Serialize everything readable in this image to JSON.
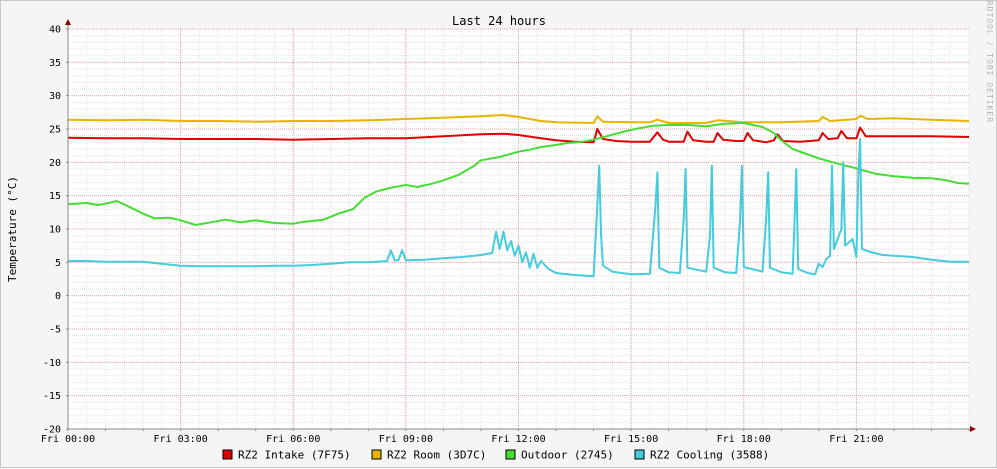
{
  "chart_data": {
    "type": "line",
    "title": "Last 24 hours",
    "ylabel": "Temperature (°C)",
    "watermark": "RRDTOOL / TOBI OETIKER",
    "ylim": [
      -20,
      40
    ],
    "y_ticks": [
      40,
      35,
      30,
      25,
      20,
      15,
      10,
      5,
      0,
      -5,
      -10,
      -15,
      -20
    ],
    "x_range": [
      0,
      24
    ],
    "x_ticks": [
      {
        "hour": 0,
        "label": "Fri 00:00"
      },
      {
        "hour": 3,
        "label": "Fri 03:00"
      },
      {
        "hour": 6,
        "label": "Fri 06:00"
      },
      {
        "hour": 9,
        "label": "Fri 09:00"
      },
      {
        "hour": 12,
        "label": "Fri 12:00"
      },
      {
        "hour": 15,
        "label": "Fri 15:00"
      },
      {
        "hour": 18,
        "label": "Fri 18:00"
      },
      {
        "hour": 21,
        "label": "Fri 21:00"
      }
    ],
    "grid": true,
    "legend_position": "bottom",
    "series": [
      {
        "name": "RZ2 Intake (7F75)",
        "color": "#e00000",
        "points": [
          [
            0,
            23.7
          ],
          [
            1,
            23.6
          ],
          [
            2,
            23.6
          ],
          [
            3,
            23.5
          ],
          [
            4,
            23.5
          ],
          [
            5,
            23.5
          ],
          [
            6,
            23.4
          ],
          [
            7,
            23.5
          ],
          [
            8,
            23.6
          ],
          [
            9,
            23.6
          ],
          [
            10,
            23.9
          ],
          [
            11,
            24.2
          ],
          [
            11.6,
            24.3
          ],
          [
            12,
            24.1
          ],
          [
            12.6,
            23.6
          ],
          [
            13,
            23.3
          ],
          [
            13.5,
            23.1
          ],
          [
            14,
            23.0
          ],
          [
            14.1,
            25.0
          ],
          [
            14.25,
            23.5
          ],
          [
            14.6,
            23.2
          ],
          [
            15,
            23.1
          ],
          [
            15.5,
            23.1
          ],
          [
            15.7,
            24.5
          ],
          [
            15.85,
            23.4
          ],
          [
            16,
            23.1
          ],
          [
            16.4,
            23.1
          ],
          [
            16.5,
            24.6
          ],
          [
            16.65,
            23.3
          ],
          [
            17,
            23.1
          ],
          [
            17.2,
            23.1
          ],
          [
            17.3,
            24.4
          ],
          [
            17.45,
            23.4
          ],
          [
            17.8,
            23.2
          ],
          [
            18,
            23.2
          ],
          [
            18.1,
            24.4
          ],
          [
            18.25,
            23.3
          ],
          [
            18.6,
            23.0
          ],
          [
            18.8,
            23.3
          ],
          [
            18.9,
            24.2
          ],
          [
            19.05,
            23.2
          ],
          [
            19.5,
            23.1
          ],
          [
            20,
            23.3
          ],
          [
            20.1,
            24.4
          ],
          [
            20.25,
            23.5
          ],
          [
            20.5,
            23.6
          ],
          [
            20.6,
            24.7
          ],
          [
            20.75,
            23.6
          ],
          [
            21,
            23.6
          ],
          [
            21.1,
            25.2
          ],
          [
            21.25,
            23.9
          ],
          [
            22,
            23.9
          ],
          [
            23,
            23.9
          ],
          [
            24,
            23.8
          ]
        ]
      },
      {
        "name": "RZ2 Room (3D7C)",
        "color": "#e8b400",
        "points": [
          [
            0,
            26.4
          ],
          [
            1,
            26.3
          ],
          [
            2,
            26.4
          ],
          [
            3,
            26.2
          ],
          [
            4,
            26.2
          ],
          [
            5,
            26.1
          ],
          [
            6,
            26.2
          ],
          [
            7,
            26.2
          ],
          [
            8,
            26.3
          ],
          [
            9,
            26.5
          ],
          [
            10,
            26.7
          ],
          [
            11,
            26.9
          ],
          [
            11.6,
            27.1
          ],
          [
            12,
            26.8
          ],
          [
            12.6,
            26.2
          ],
          [
            13,
            26.0
          ],
          [
            14,
            25.9
          ],
          [
            14.1,
            26.9
          ],
          [
            14.25,
            26.1
          ],
          [
            15,
            26.0
          ],
          [
            15.5,
            26.0
          ],
          [
            15.7,
            26.4
          ],
          [
            16,
            25.9
          ],
          [
            17,
            25.9
          ],
          [
            17.3,
            26.3
          ],
          [
            18,
            26.0
          ],
          [
            19,
            26.0
          ],
          [
            20,
            26.2
          ],
          [
            20.1,
            26.8
          ],
          [
            20.3,
            26.2
          ],
          [
            21,
            26.5
          ],
          [
            21.1,
            27.0
          ],
          [
            21.3,
            26.5
          ],
          [
            22,
            26.6
          ],
          [
            23,
            26.4
          ],
          [
            24,
            26.2
          ]
        ]
      },
      {
        "name": "Outdoor (2745)",
        "color": "#44dd33",
        "points": [
          [
            0,
            13.7
          ],
          [
            0.5,
            13.9
          ],
          [
            0.8,
            13.6
          ],
          [
            1,
            13.8
          ],
          [
            1.3,
            14.2
          ],
          [
            1.6,
            13.4
          ],
          [
            2,
            12.3
          ],
          [
            2.3,
            11.6
          ],
          [
            2.7,
            11.7
          ],
          [
            3,
            11.3
          ],
          [
            3.4,
            10.6
          ],
          [
            3.8,
            11.0
          ],
          [
            4.2,
            11.4
          ],
          [
            4.6,
            11.0
          ],
          [
            5,
            11.3
          ],
          [
            5.5,
            10.9
          ],
          [
            6,
            10.8
          ],
          [
            6.3,
            11.1
          ],
          [
            6.8,
            11.4
          ],
          [
            7.2,
            12.3
          ],
          [
            7.6,
            13.0
          ],
          [
            7.9,
            14.7
          ],
          [
            8.2,
            15.6
          ],
          [
            8.6,
            16.2
          ],
          [
            9,
            16.6
          ],
          [
            9.3,
            16.3
          ],
          [
            9.7,
            16.8
          ],
          [
            10,
            17.3
          ],
          [
            10.4,
            18.1
          ],
          [
            10.8,
            19.4
          ],
          [
            11,
            20.3
          ],
          [
            11.5,
            20.8
          ],
          [
            12,
            21.6
          ],
          [
            12.3,
            21.9
          ],
          [
            12.6,
            22.3
          ],
          [
            13,
            22.6
          ],
          [
            13.3,
            22.9
          ],
          [
            13.6,
            23.0
          ],
          [
            14,
            23.4
          ],
          [
            14.4,
            24.0
          ],
          [
            14.8,
            24.6
          ],
          [
            15.2,
            25.1
          ],
          [
            15.6,
            25.5
          ],
          [
            16,
            25.6
          ],
          [
            16.5,
            25.6
          ],
          [
            17,
            25.4
          ],
          [
            17.5,
            25.8
          ],
          [
            18,
            25.9
          ],
          [
            18.5,
            25.3
          ],
          [
            18.8,
            24.4
          ],
          [
            19,
            23.3
          ],
          [
            19.3,
            22.0
          ],
          [
            19.6,
            21.4
          ],
          [
            20,
            20.6
          ],
          [
            20.5,
            19.8
          ],
          [
            21,
            19.1
          ],
          [
            21.5,
            18.3
          ],
          [
            22,
            17.9
          ],
          [
            22.5,
            17.7
          ],
          [
            23,
            17.6
          ],
          [
            23.4,
            17.3
          ],
          [
            23.7,
            16.9
          ],
          [
            24,
            16.8
          ]
        ]
      },
      {
        "name": "RZ2 Cooling (3588)",
        "color": "#44ccdd",
        "points": [
          [
            0,
            5.2
          ],
          [
            0.5,
            5.2
          ],
          [
            1,
            5.1
          ],
          [
            1.5,
            5.1
          ],
          [
            2,
            5.1
          ],
          [
            2.5,
            4.8
          ],
          [
            3,
            4.5
          ],
          [
            3.5,
            4.4
          ],
          [
            4,
            4.4
          ],
          [
            4.5,
            4.4
          ],
          [
            5,
            4.4
          ],
          [
            5.5,
            4.5
          ],
          [
            6,
            4.5
          ],
          [
            6.5,
            4.6
          ],
          [
            7,
            4.8
          ],
          [
            7.5,
            5.0
          ],
          [
            8,
            5.0
          ],
          [
            8.5,
            5.2
          ],
          [
            8.6,
            6.8
          ],
          [
            8.7,
            5.3
          ],
          [
            8.8,
            5.3
          ],
          [
            8.9,
            6.8
          ],
          [
            9,
            5.3
          ],
          [
            9.5,
            5.4
          ],
          [
            10,
            5.6
          ],
          [
            10.5,
            5.8
          ],
          [
            11,
            6.1
          ],
          [
            11.3,
            6.4
          ],
          [
            11.4,
            9.6
          ],
          [
            11.5,
            7.0
          ],
          [
            11.6,
            9.6
          ],
          [
            11.7,
            6.8
          ],
          [
            11.8,
            8.2
          ],
          [
            11.9,
            6.0
          ],
          [
            12,
            7.5
          ],
          [
            12.1,
            5.0
          ],
          [
            12.2,
            6.5
          ],
          [
            12.3,
            4.2
          ],
          [
            12.4,
            6.3
          ],
          [
            12.5,
            4.2
          ],
          [
            12.6,
            5.2
          ],
          [
            12.8,
            4.0
          ],
          [
            13,
            3.4
          ],
          [
            13.5,
            3.1
          ],
          [
            14,
            2.9
          ],
          [
            14.1,
            13.5
          ],
          [
            14.15,
            19.5
          ],
          [
            14.2,
            9.0
          ],
          [
            14.25,
            4.5
          ],
          [
            14.5,
            3.6
          ],
          [
            15,
            3.2
          ],
          [
            15.5,
            3.3
          ],
          [
            15.65,
            13.5
          ],
          [
            15.7,
            18.5
          ],
          [
            15.75,
            4.2
          ],
          [
            16,
            3.5
          ],
          [
            16.3,
            3.4
          ],
          [
            16.4,
            11.5
          ],
          [
            16.45,
            19.0
          ],
          [
            16.5,
            4.2
          ],
          [
            17,
            3.6
          ],
          [
            17.1,
            9.0
          ],
          [
            17.15,
            19.5
          ],
          [
            17.2,
            4.2
          ],
          [
            17.5,
            3.5
          ],
          [
            17.8,
            3.4
          ],
          [
            17.9,
            11.0
          ],
          [
            17.95,
            19.5
          ],
          [
            18,
            4.3
          ],
          [
            18.5,
            3.6
          ],
          [
            18.6,
            12.0
          ],
          [
            18.65,
            18.5
          ],
          [
            18.7,
            4.2
          ],
          [
            19,
            3.5
          ],
          [
            19.3,
            3.3
          ],
          [
            19.35,
            10.5
          ],
          [
            19.4,
            19.0
          ],
          [
            19.45,
            4.0
          ],
          [
            19.7,
            3.4
          ],
          [
            19.9,
            3.2
          ],
          [
            20,
            4.8
          ],
          [
            20.1,
            4.3
          ],
          [
            20.2,
            5.5
          ],
          [
            20.3,
            6.0
          ],
          [
            20.35,
            19.5
          ],
          [
            20.4,
            7.0
          ],
          [
            20.6,
            10.0
          ],
          [
            20.65,
            20.0
          ],
          [
            20.7,
            7.5
          ],
          [
            20.9,
            8.5
          ],
          [
            21,
            5.8
          ],
          [
            21.05,
            18.0
          ],
          [
            21.1,
            23.5
          ],
          [
            21.15,
            7.0
          ],
          [
            21.4,
            6.5
          ],
          [
            21.7,
            6.1
          ],
          [
            22,
            6.0
          ],
          [
            22.5,
            5.8
          ],
          [
            23,
            5.4
          ],
          [
            23.5,
            5.1
          ],
          [
            24,
            5.1
          ]
        ]
      }
    ]
  }
}
